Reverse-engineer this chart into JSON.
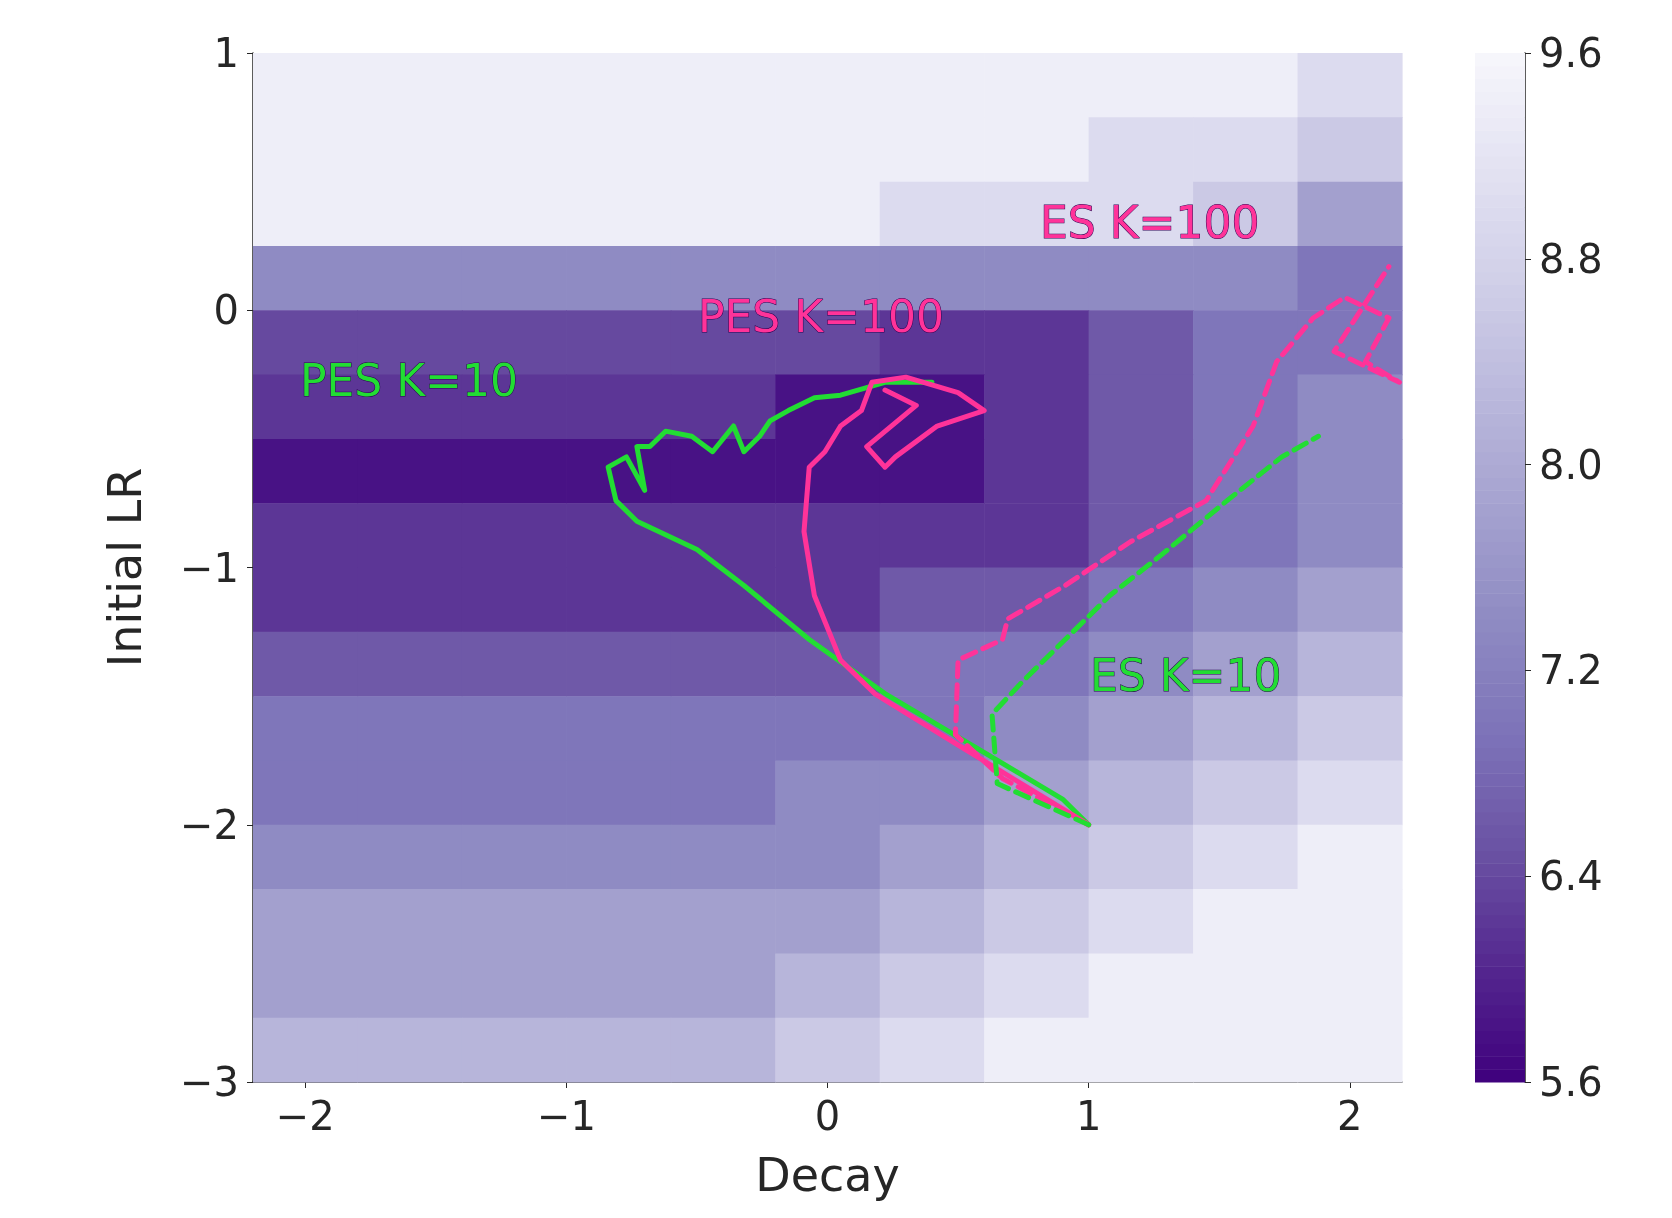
{
  "chart_data": {
    "type": "heatmap",
    "xlabel": "Decay",
    "ylabel": "Initial LR",
    "xlim": [
      -2.2,
      2.2
    ],
    "xticks": [
      -2,
      -1,
      0,
      1,
      2
    ],
    "ylim": [
      -3,
      1
    ],
    "yticks": [
      -3,
      -2,
      -1,
      0,
      1
    ],
    "clim": [
      5.6,
      9.6
    ],
    "cticks": [
      5.6,
      6.4,
      7.2,
      {
        "value": 8,
        "label": "8.0"
      },
      8.8,
      9.6
    ],
    "cells": [
      [
        9.4,
        9.4,
        9.4,
        9.4,
        9.4,
        9.4,
        9.4,
        9.4,
        9.4,
        9.4,
        9.0
      ],
      [
        9.4,
        9.4,
        9.4,
        9.4,
        9.4,
        9.4,
        9.4,
        9.4,
        9.0,
        9.0,
        8.6
      ],
      [
        9.4,
        9.4,
        9.4,
        9.4,
        9.4,
        9.4,
        9.0,
        9.0,
        9.0,
        8.6,
        7.8
      ],
      [
        7.4,
        7.4,
        7.4,
        7.4,
        7.4,
        7.4,
        7.4,
        7.4,
        7.4,
        7.4,
        7.0
      ],
      [
        6.4,
        6.4,
        6.4,
        6.4,
        6.4,
        6.4,
        6.2,
        6.2,
        6.6,
        7.0,
        7.0
      ],
      [
        6.2,
        6.2,
        6.2,
        6.2,
        6.2,
        5.8,
        5.8,
        6.2,
        6.6,
        7.0,
        7.4
      ],
      [
        5.8,
        5.8,
        5.8,
        5.8,
        5.8,
        5.8,
        5.8,
        6.2,
        6.6,
        7.0,
        7.4
      ],
      [
        6.2,
        6.2,
        6.2,
        6.2,
        6.2,
        6.2,
        6.2,
        6.2,
        6.6,
        7.0,
        7.4
      ],
      [
        6.2,
        6.2,
        6.2,
        6.2,
        6.2,
        6.2,
        6.6,
        6.6,
        7.0,
        7.4,
        7.8
      ],
      [
        6.6,
        6.6,
        6.6,
        6.6,
        6.6,
        6.6,
        7.0,
        7.0,
        7.4,
        7.8,
        8.2
      ],
      [
        7.0,
        7.0,
        7.0,
        7.0,
        7.0,
        7.0,
        7.0,
        7.4,
        7.8,
        8.2,
        8.6
      ],
      [
        7.0,
        7.0,
        7.0,
        7.0,
        7.0,
        7.4,
        7.4,
        7.8,
        8.2,
        8.6,
        9.0
      ],
      [
        7.4,
        7.4,
        7.4,
        7.4,
        7.4,
        7.4,
        7.8,
        8.2,
        8.6,
        9.0,
        9.4
      ],
      [
        7.8,
        7.8,
        7.8,
        7.8,
        7.8,
        7.8,
        8.2,
        8.6,
        9.0,
        9.4,
        9.4
      ],
      [
        7.8,
        7.8,
        7.8,
        7.8,
        7.8,
        8.2,
        8.6,
        9.0,
        9.4,
        9.4,
        9.4
      ],
      [
        8.2,
        8.2,
        8.2,
        8.2,
        8.2,
        8.6,
        9.0,
        9.4,
        9.4,
        9.4,
        9.4
      ]
    ],
    "series": [
      {
        "type": "line",
        "name": "PES K=10",
        "color": "#22dd33",
        "line_style": "solid",
        "x": [
          1.0,
          0.9,
          0.22,
          -0.07,
          -0.32,
          -0.5,
          -0.73,
          -0.81,
          -0.84,
          -0.77,
          -0.7,
          -0.73,
          -0.68,
          -0.62,
          -0.52,
          -0.44,
          -0.36,
          -0.32,
          -0.26,
          -0.22,
          -0.15,
          -0.05,
          0.05,
          0.22,
          0.4
        ],
        "values": [
          -2.0,
          -1.9,
          -1.49,
          -1.28,
          -1.07,
          -0.93,
          -0.82,
          -0.74,
          -0.61,
          -0.57,
          -0.7,
          -0.53,
          -0.53,
          -0.47,
          -0.49,
          -0.55,
          -0.45,
          -0.55,
          -0.49,
          -0.43,
          -0.39,
          -0.34,
          -0.33,
          -0.28,
          -0.28
        ]
      },
      {
        "type": "line",
        "name": "PES K=100",
        "color": "#ff3399",
        "line_style": "solid",
        "x": [
          1.0,
          0.5,
          0.18,
          0.05,
          -0.05,
          -0.09,
          -0.07,
          -0.01,
          0.05,
          0.13,
          0.17,
          0.3,
          0.5,
          0.6,
          0.42,
          0.26,
          0.22,
          0.15,
          0.34,
          0.22
        ],
        "values": [
          -2.0,
          -1.69,
          -1.49,
          -1.36,
          -1.11,
          -0.86,
          -0.61,
          -0.55,
          -0.45,
          -0.39,
          -0.28,
          -0.26,
          -0.32,
          -0.39,
          -0.45,
          -0.57,
          -0.61,
          -0.53,
          -0.37,
          -0.31
        ]
      },
      {
        "type": "line",
        "name": "ES K=100",
        "color": "#ff3399",
        "line_style": "dashed",
        "x": [
          1.0,
          0.67,
          0.49,
          0.5,
          0.67,
          0.69,
          0.91,
          1.16,
          1.45,
          1.63,
          1.72,
          1.86,
          1.98,
          2.15,
          2.06,
          2.19,
          1.94,
          2.15
        ],
        "values": [
          -2.0,
          -1.82,
          -1.65,
          -1.36,
          -1.28,
          -1.2,
          -1.07,
          -0.9,
          -0.74,
          -0.45,
          -0.2,
          -0.03,
          0.05,
          -0.03,
          -0.2,
          -0.28,
          -0.16,
          0.17
        ]
      },
      {
        "type": "line",
        "name": "ES K=10",
        "color": "#22dd33",
        "line_style": "dashed",
        "x": [
          1.0,
          0.65,
          0.63,
          0.75,
          0.87,
          1.08,
          1.28,
          1.53,
          1.74,
          1.88
        ],
        "values": [
          -2.0,
          -1.84,
          -1.57,
          -1.44,
          -1.32,
          -1.11,
          -0.95,
          -0.74,
          -0.57,
          -0.49
        ]
      }
    ],
    "grid": false
  }
}
